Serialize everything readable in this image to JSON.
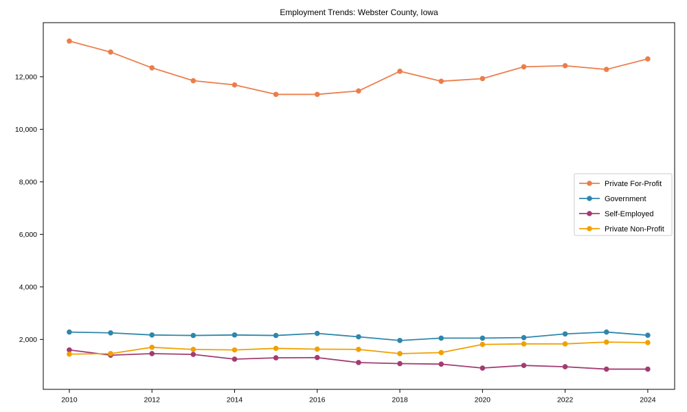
{
  "chart_data": {
    "type": "line",
    "title": "Employment Trends: Webster County, Iowa",
    "x": [
      2010,
      2011,
      2012,
      2013,
      2014,
      2015,
      2016,
      2017,
      2018,
      2019,
      2020,
      2021,
      2022,
      2023,
      2024
    ],
    "series": [
      {
        "name": "Private For-Profit",
        "color": "#EC7D4A",
        "values": [
          13360,
          12940,
          12340,
          11850,
          11690,
          11330,
          11330,
          11460,
          12210,
          11830,
          11930,
          12380,
          12420,
          12280,
          12680
        ]
      },
      {
        "name": "Government",
        "color": "#2E86AB",
        "values": [
          2280,
          2250,
          2170,
          2150,
          2170,
          2150,
          2230,
          2100,
          1960,
          2050,
          2050,
          2070,
          2210,
          2280,
          2160
        ]
      },
      {
        "name": "Self-Employed",
        "color": "#A23B72",
        "values": [
          1600,
          1400,
          1460,
          1430,
          1250,
          1300,
          1310,
          1120,
          1080,
          1060,
          910,
          1010,
          960,
          870,
          870
        ]
      },
      {
        "name": "Private Non-Profit",
        "color": "#F0A000",
        "values": [
          1440,
          1460,
          1700,
          1620,
          1600,
          1660,
          1630,
          1620,
          1460,
          1500,
          1810,
          1830,
          1830,
          1900,
          1880
        ]
      }
    ],
    "xlabel": "",
    "ylabel": "",
    "xlim": [
      2009.37,
      2024.65
    ],
    "ylim": [
      100,
      14060
    ],
    "xticks": [
      2010,
      2012,
      2014,
      2016,
      2018,
      2020,
      2022,
      2024
    ],
    "xtick_labels": [
      "2010",
      "2012",
      "2014",
      "2016",
      "2018",
      "2020",
      "2022",
      "2024"
    ],
    "yticks": [
      2000,
      4000,
      6000,
      8000,
      10000,
      12000
    ],
    "ytick_labels": [
      "2,000",
      "4,000",
      "6,000",
      "8,000",
      "10,000",
      "12,000"
    ],
    "grid": false,
    "legend_position": "center-right",
    "legend_border_color": "#cccccc",
    "axis_color": "#000000",
    "background": "#ffffff"
  }
}
